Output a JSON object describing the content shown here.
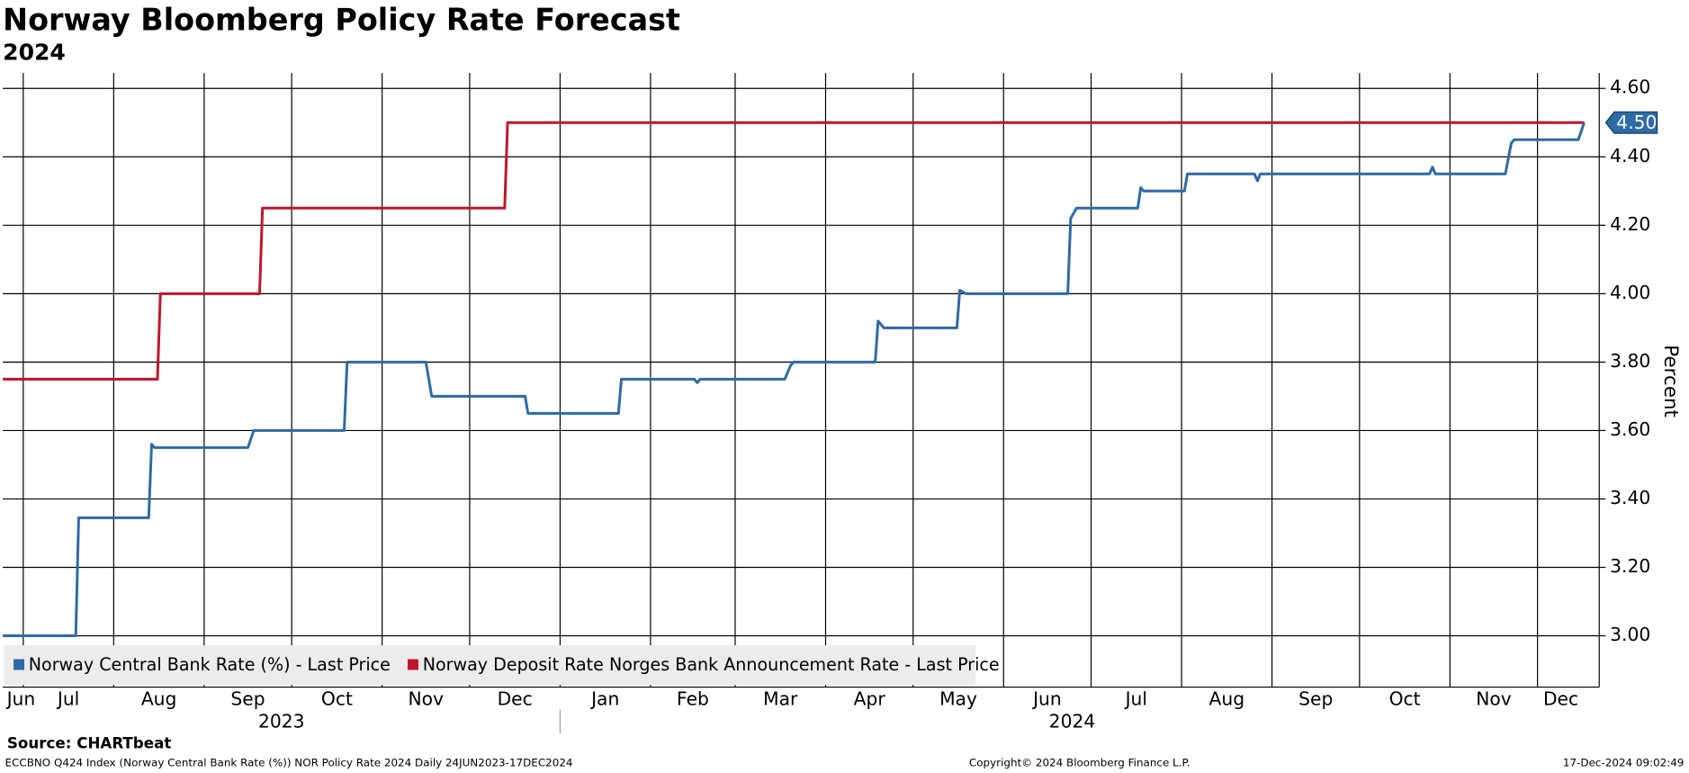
{
  "chart_data": {
    "type": "line",
    "title": "Norway Bloomberg Policy Rate Forecast",
    "subtitle": "2024",
    "y_label": "Percent",
    "source": "Source: CHARTbeat",
    "footer_left": "ECCBNO Q424 Index (Norway Central Bank Rate (%)) NOR Policy Rate 2024  Daily 24JUN2023-17DEC2024",
    "footer_center": "Copyright© 2024 Bloomberg Finance L.P.",
    "footer_right": "17-Dec-2024 09:02:49",
    "xlim": [
      "2023-06-24",
      "2024-12-17"
    ],
    "xticks": [
      {
        "value": "2023-06",
        "label": "Jun"
      },
      {
        "value": "2023-07",
        "label": "Jul"
      },
      {
        "value": "2023-08",
        "label": "Aug"
      },
      {
        "value": "2023-09",
        "label": "Sep"
      },
      {
        "value": "2023-10",
        "label": "Oct"
      },
      {
        "value": "2023-11",
        "label": "Nov"
      },
      {
        "value": "2023-12",
        "label": "Dec"
      },
      {
        "value": "2024-01",
        "label": "Jan"
      },
      {
        "value": "2024-02",
        "label": "Feb"
      },
      {
        "value": "2024-03",
        "label": "Mar"
      },
      {
        "value": "2024-04",
        "label": "Apr"
      },
      {
        "value": "2024-05",
        "label": "May"
      },
      {
        "value": "2024-06",
        "label": "Jun"
      },
      {
        "value": "2024-07",
        "label": "Jul"
      },
      {
        "value": "2024-08",
        "label": "Aug"
      },
      {
        "value": "2024-09",
        "label": "Sep"
      },
      {
        "value": "2024-10",
        "label": "Oct"
      },
      {
        "value": "2024-11",
        "label": "Nov"
      },
      {
        "value": "2024-12",
        "label": "Dec"
      }
    ],
    "year_labels": [
      2023,
      2024
    ],
    "ylim": [
      2.85,
      4.645
    ],
    "yticks": [
      {
        "value": 3.0,
        "label": "3.00"
      },
      {
        "value": 3.2,
        "label": "3.20"
      },
      {
        "value": 3.4,
        "label": "3.40"
      },
      {
        "value": 3.6,
        "label": "3.60"
      },
      {
        "value": 3.8,
        "label": "3.80"
      },
      {
        "value": 4.0,
        "label": "4.00"
      },
      {
        "value": 4.2,
        "label": "4.20"
      },
      {
        "value": 4.4,
        "label": "4.40"
      },
      {
        "value": 4.6,
        "label": "4.60"
      }
    ],
    "grid": true,
    "legend": "bottom-left",
    "series": [
      {
        "name": "Norway Central Bank Rate (%) - Last Price",
        "color": "#2d6aa6",
        "last_label": "4.50",
        "x": [
          "2023-06-24",
          "2023-07-19",
          "2023-07-20",
          "2023-08-13",
          "2023-08-14",
          "2023-08-15",
          "2023-09-16",
          "2023-09-18",
          "2023-10-19",
          "2023-10-20",
          "2023-11-16",
          "2023-11-18",
          "2023-12-20",
          "2023-12-21",
          "2024-01-21",
          "2024-01-22",
          "2024-02-16",
          "2024-02-17",
          "2024-02-18",
          "2024-03-18",
          "2024-03-20",
          "2024-03-21",
          "2024-04-18",
          "2024-04-19",
          "2024-04-21",
          "2024-05-16",
          "2024-05-17",
          "2024-05-19",
          "2024-06-23",
          "2024-06-24",
          "2024-06-26",
          "2024-07-17",
          "2024-07-18",
          "2024-07-19",
          "2024-08-02",
          "2024-08-03",
          "2024-08-26",
          "2024-08-27",
          "2024-08-28",
          "2024-10-25",
          "2024-10-26",
          "2024-10-27",
          "2024-11-20",
          "2024-11-22",
          "2024-11-23",
          "2024-12-15",
          "2024-12-17"
        ],
        "values": [
          3.0,
          3.0,
          3.345,
          3.345,
          3.56,
          3.55,
          3.55,
          3.6,
          3.6,
          3.8,
          3.8,
          3.7,
          3.7,
          3.65,
          3.65,
          3.75,
          3.75,
          3.74,
          3.75,
          3.75,
          3.79,
          3.8,
          3.8,
          3.92,
          3.9,
          3.9,
          4.01,
          4.0,
          4.0,
          4.22,
          4.25,
          4.25,
          4.31,
          4.3,
          4.3,
          4.35,
          4.35,
          4.33,
          4.35,
          4.35,
          4.37,
          4.35,
          4.35,
          4.44,
          4.45,
          4.45,
          4.5
        ]
      },
      {
        "name": "Norway Deposit Rate Norges Bank Announcement Rate - Last Price",
        "color": "#c0152b",
        "x": [
          "2023-06-24",
          "2023-08-16",
          "2023-08-17",
          "2023-09-20",
          "2023-09-21",
          "2023-12-13",
          "2023-12-14",
          "2024-12-17"
        ],
        "values": [
          3.75,
          3.75,
          4.0,
          4.0,
          4.25,
          4.25,
          4.5,
          4.5
        ]
      }
    ]
  }
}
